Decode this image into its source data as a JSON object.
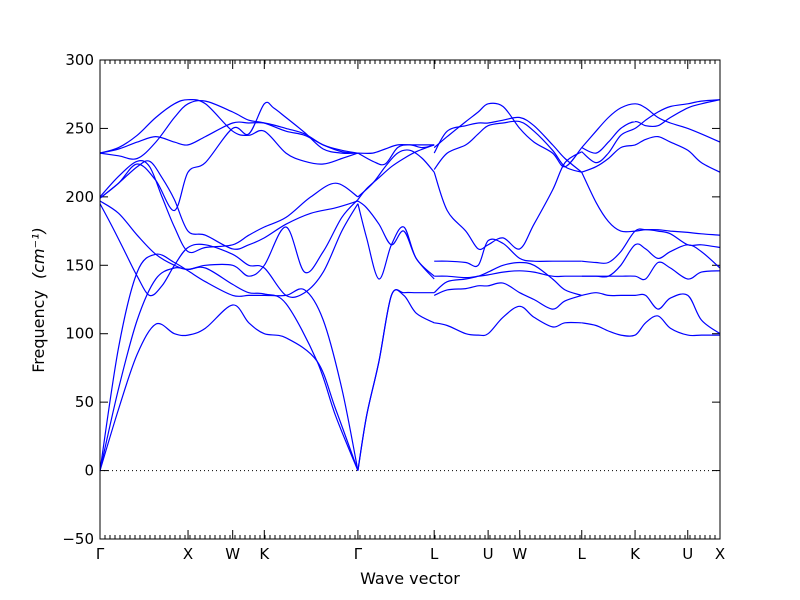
{
  "chart_data": {
    "type": "line",
    "title": "",
    "xlabel": "Wave vector",
    "ylabel": "Frequency",
    "ylabel_unit": "(cm⁻¹)",
    "ylim": [
      -50,
      300
    ],
    "yticks": [
      -50,
      0,
      50,
      100,
      150,
      200,
      250,
      300
    ],
    "xlim": [
      0,
      1
    ],
    "grid": false,
    "zero_line": true,
    "line_color": "#0000ff",
    "kpoints": [
      {
        "label": "Γ",
        "pos": 0.0
      },
      {
        "label": "X",
        "pos": 0.142
      },
      {
        "label": "W",
        "pos": 0.214
      },
      {
        "label": "K",
        "pos": 0.265
      },
      {
        "label": "Γ",
        "pos": 0.416
      },
      {
        "label": "L",
        "pos": 0.539
      },
      {
        "label": "U",
        "pos": 0.626
      },
      {
        "label": "W",
        "pos": 0.677
      },
      {
        "label": "L",
        "pos": 0.777
      },
      {
        "label": "K",
        "pos": 0.863
      },
      {
        "label": "U",
        "pos": 0.948
      },
      {
        "label": "X",
        "pos": 1.0
      }
    ],
    "series": [
      {
        "x": [
          0,
          0.03,
          0.06,
          0.09,
          0.12,
          0.142,
          0.17,
          0.214,
          0.24,
          0.265,
          0.3,
          0.35,
          0.38,
          0.416
        ],
        "y": [
          0,
          45,
          85,
          107,
          100,
          99,
          104,
          121,
          108,
          100,
          97,
          80,
          45,
          0
        ]
      },
      {
        "x": [
          0,
          0.03,
          0.06,
          0.09,
          0.12,
          0.142,
          0.17,
          0.214,
          0.24,
          0.265,
          0.3,
          0.35,
          0.38,
          0.416
        ],
        "y": [
          0,
          60,
          110,
          140,
          148,
          147,
          148,
          136,
          130,
          129,
          122,
          80,
          40,
          0
        ]
      },
      {
        "x": [
          0,
          0.03,
          0.06,
          0.09,
          0.12,
          0.142,
          0.17,
          0.214,
          0.24,
          0.265,
          0.3,
          0.33,
          0.36,
          0.39,
          0.416
        ],
        "y": [
          0,
          90,
          145,
          158,
          152,
          146,
          138,
          128,
          128,
          128,
          128,
          132,
          110,
          60,
          0
        ]
      },
      {
        "x": [
          0,
          0.02,
          0.04,
          0.06,
          0.08,
          0.1,
          0.12,
          0.142,
          0.17,
          0.214,
          0.24,
          0.265,
          0.3,
          0.33,
          0.36,
          0.39,
          0.416
        ],
        "y": [
          195,
          178,
          160,
          142,
          128,
          135,
          150,
          163,
          165,
          158,
          150,
          148,
          128,
          130,
          145,
          175,
          195
        ]
      },
      {
        "x": [
          0,
          0.03,
          0.06,
          0.09,
          0.12,
          0.142,
          0.17,
          0.214,
          0.24,
          0.265,
          0.3,
          0.33,
          0.36,
          0.39,
          0.416
        ],
        "y": [
          197,
          188,
          172,
          158,
          150,
          147,
          150,
          150,
          142,
          150,
          178,
          145,
          160,
          185,
          198
        ]
      },
      {
        "x": [
          0,
          0.03,
          0.06,
          0.08,
          0.1,
          0.12,
          0.142,
          0.17,
          0.214,
          0.24,
          0.265,
          0.3,
          0.34,
          0.38,
          0.416
        ],
        "y": [
          199,
          210,
          222,
          226,
          214,
          198,
          175,
          172,
          162,
          165,
          170,
          180,
          188,
          192,
          197
        ]
      },
      {
        "x": [
          0,
          0.03,
          0.06,
          0.08,
          0.1,
          0.12,
          0.142,
          0.17,
          0.214,
          0.24,
          0.265,
          0.3,
          0.34,
          0.38,
          0.416
        ],
        "y": [
          200,
          215,
          226,
          222,
          200,
          178,
          160,
          163,
          165,
          172,
          178,
          185,
          200,
          210,
          200
        ]
      },
      {
        "x": [
          0,
          0.03,
          0.06,
          0.09,
          0.12,
          0.142,
          0.17,
          0.214,
          0.24,
          0.265,
          0.3,
          0.33,
          0.36,
          0.39,
          0.416
        ],
        "y": [
          232,
          230,
          228,
          240,
          258,
          268,
          270,
          262,
          256,
          254,
          248,
          245,
          238,
          233,
          232
        ]
      },
      {
        "x": [
          0,
          0.03,
          0.06,
          0.09,
          0.12,
          0.142,
          0.17,
          0.214,
          0.24,
          0.265,
          0.3,
          0.33,
          0.36,
          0.39,
          0.416
        ],
        "y": [
          232,
          235,
          240,
          244,
          240,
          238,
          244,
          254,
          254,
          254,
          250,
          246,
          238,
          234,
          232
        ]
      },
      {
        "x": [
          0,
          0.03,
          0.06,
          0.09,
          0.12,
          0.142,
          0.17,
          0.214,
          0.24,
          0.265,
          0.3,
          0.33,
          0.36,
          0.39,
          0.416
        ],
        "y": [
          232,
          236,
          245,
          258,
          268,
          271,
          268,
          248,
          245,
          248,
          232,
          226,
          224,
          228,
          232
        ]
      },
      {
        "x": [
          0,
          0.03,
          0.06,
          0.09,
          0.12,
          0.142,
          0.17,
          0.214,
          0.24,
          0.265,
          0.28,
          0.3,
          0.33,
          0.36,
          0.39,
          0.416
        ],
        "y": [
          199,
          210,
          224,
          212,
          190,
          218,
          225,
          250,
          246,
          268,
          265,
          258,
          247,
          235,
          232,
          232
        ]
      },
      {
        "x": [
          0.416,
          0.43,
          0.45,
          0.47,
          0.49,
          0.51,
          0.539
        ],
        "y": [
          0,
          40,
          80,
          128,
          128,
          115,
          108
        ]
      },
      {
        "x": [
          0.416,
          0.43,
          0.45,
          0.47,
          0.49,
          0.51,
          0.539
        ],
        "y": [
          0,
          40,
          80,
          128,
          130,
          130,
          130
        ]
      },
      {
        "x": [
          0.416,
          0.43,
          0.45,
          0.47,
          0.49,
          0.51,
          0.539
        ],
        "y": [
          195,
          170,
          140,
          165,
          178,
          155,
          142
        ]
      },
      {
        "x": [
          0.416,
          0.43,
          0.45,
          0.47,
          0.49,
          0.51,
          0.539
        ],
        "y": [
          197,
          192,
          180,
          165,
          175,
          155,
          140
        ]
      },
      {
        "x": [
          0.416,
          0.43,
          0.45,
          0.47,
          0.49,
          0.51,
          0.539
        ],
        "y": [
          198,
          206,
          214,
          222,
          228,
          233,
          238
        ]
      },
      {
        "x": [
          0.416,
          0.44,
          0.46,
          0.48,
          0.5,
          0.52,
          0.539
        ],
        "y": [
          232,
          226,
          224,
          236,
          238,
          236,
          238
        ]
      },
      {
        "x": [
          0.416,
          0.44,
          0.46,
          0.48,
          0.5,
          0.52,
          0.539
        ],
        "y": [
          232,
          232,
          235,
          238,
          238,
          238,
          238
        ]
      },
      {
        "x": [
          0.416,
          0.44,
          0.46,
          0.48,
          0.5,
          0.52,
          0.539
        ],
        "y": [
          200,
          210,
          222,
          232,
          234,
          228,
          218
        ]
      },
      {
        "x": [
          0.539,
          0.56,
          0.59,
          0.61,
          0.626,
          0.65,
          0.677,
          0.7,
          0.73,
          0.75,
          0.777
        ],
        "y": [
          108,
          106,
          100,
          99,
          100,
          112,
          120,
          112,
          105,
          108,
          108
        ]
      },
      {
        "x": [
          0.539,
          0.56,
          0.59,
          0.61,
          0.626,
          0.65,
          0.677,
          0.7,
          0.73,
          0.75,
          0.777
        ],
        "y": [
          128,
          132,
          133,
          135,
          135,
          137,
          130,
          125,
          118,
          124,
          128
        ]
      },
      {
        "x": [
          0.539,
          0.56,
          0.59,
          0.61,
          0.626,
          0.65,
          0.677,
          0.7,
          0.73,
          0.75,
          0.777
        ],
        "y": [
          130,
          138,
          140,
          142,
          145,
          150,
          152,
          150,
          140,
          132,
          128
        ]
      },
      {
        "x": [
          0.539,
          0.56,
          0.59,
          0.61,
          0.626,
          0.65,
          0.677,
          0.7,
          0.73,
          0.75,
          0.777
        ],
        "y": [
          142,
          142,
          141,
          142,
          143,
          145,
          146,
          145,
          142,
          142,
          142
        ]
      },
      {
        "x": [
          0.539,
          0.56,
          0.59,
          0.61,
          0.626,
          0.65,
          0.677,
          0.7,
          0.73,
          0.75,
          0.777
        ],
        "y": [
          153,
          153,
          152,
          150,
          168,
          166,
          155,
          153,
          153,
          153,
          153
        ]
      },
      {
        "x": [
          0.539,
          0.56,
          0.59,
          0.61,
          0.626,
          0.65,
          0.677,
          0.7,
          0.73,
          0.75,
          0.777
        ],
        "y": [
          218,
          190,
          175,
          162,
          165,
          170,
          162,
          180,
          205,
          225,
          233
        ]
      },
      {
        "x": [
          0.539,
          0.56,
          0.59,
          0.61,
          0.626,
          0.65,
          0.677,
          0.7,
          0.73,
          0.75,
          0.777
        ],
        "y": [
          220,
          232,
          238,
          246,
          252,
          254,
          255,
          248,
          234,
          222,
          218
        ]
      },
      {
        "x": [
          0.539,
          0.56,
          0.59,
          0.61,
          0.626,
          0.65,
          0.677,
          0.7,
          0.73,
          0.75,
          0.777
        ],
        "y": [
          232,
          248,
          252,
          254,
          254,
          256,
          258,
          252,
          238,
          228,
          218
        ]
      },
      {
        "x": [
          0.539,
          0.56,
          0.59,
          0.61,
          0.626,
          0.65,
          0.677,
          0.7,
          0.73,
          0.75,
          0.777
        ],
        "y": [
          236,
          244,
          255,
          262,
          268,
          266,
          250,
          240,
          232,
          222,
          236
        ]
      },
      {
        "x": [
          0.777,
          0.8,
          0.82,
          0.84,
          0.863,
          0.88,
          0.9,
          0.92,
          0.948,
          0.97,
          1.0
        ],
        "y": [
          108,
          106,
          102,
          99,
          99,
          108,
          113,
          104,
          99,
          99,
          99
        ]
      },
      {
        "x": [
          0.777,
          0.8,
          0.82,
          0.84,
          0.863,
          0.88,
          0.9,
          0.92,
          0.948,
          0.97,
          1.0
        ],
        "y": [
          128,
          130,
          128,
          128,
          128,
          128,
          118,
          126,
          128,
          110,
          100
        ]
      },
      {
        "x": [
          0.777,
          0.8,
          0.82,
          0.84,
          0.863,
          0.88,
          0.9,
          0.92,
          0.948,
          0.97,
          1.0
        ],
        "y": [
          142,
          142,
          142,
          142,
          142,
          140,
          152,
          148,
          140,
          145,
          146
        ]
      },
      {
        "x": [
          0.777,
          0.8,
          0.82,
          0.84,
          0.863,
          0.88,
          0.9,
          0.92,
          0.948,
          0.97,
          1.0
        ],
        "y": [
          142,
          142,
          142,
          150,
          165,
          162,
          155,
          160,
          165,
          160,
          148
        ]
      },
      {
        "x": [
          0.777,
          0.8,
          0.82,
          0.84,
          0.863,
          0.88,
          0.9,
          0.92,
          0.948,
          0.97,
          1.0
        ],
        "y": [
          153,
          152,
          152,
          160,
          175,
          176,
          175,
          173,
          165,
          165,
          163
        ]
      },
      {
        "x": [
          0.777,
          0.8,
          0.82,
          0.84,
          0.863,
          0.88,
          0.9,
          0.92,
          0.948,
          0.97,
          1.0
        ],
        "y": [
          218,
          196,
          182,
          175,
          175,
          176,
          176,
          175,
          174,
          173,
          172
        ]
      },
      {
        "x": [
          0.777,
          0.8,
          0.82,
          0.84,
          0.863,
          0.88,
          0.9,
          0.92,
          0.948,
          0.97,
          1.0
        ],
        "y": [
          218,
          222,
          228,
          236,
          238,
          242,
          244,
          240,
          234,
          225,
          218
        ]
      },
      {
        "x": [
          0.777,
          0.8,
          0.82,
          0.84,
          0.863,
          0.88,
          0.9,
          0.92,
          0.948,
          0.97,
          1.0
        ],
        "y": [
          236,
          248,
          258,
          265,
          268,
          265,
          258,
          254,
          250,
          246,
          240
        ]
      },
      {
        "x": [
          0.777,
          0.8,
          0.82,
          0.84,
          0.863,
          0.88,
          0.9,
          0.92,
          0.948,
          0.97,
          1.0
        ],
        "y": [
          236,
          232,
          240,
          250,
          255,
          252,
          252,
          258,
          265,
          268,
          271
        ]
      },
      {
        "x": [
          0.777,
          0.8,
          0.82,
          0.84,
          0.863,
          0.88,
          0.9,
          0.92,
          0.948,
          0.97,
          1.0
        ],
        "y": [
          233,
          225,
          232,
          245,
          250,
          256,
          262,
          266,
          268,
          270,
          271
        ]
      }
    ]
  }
}
